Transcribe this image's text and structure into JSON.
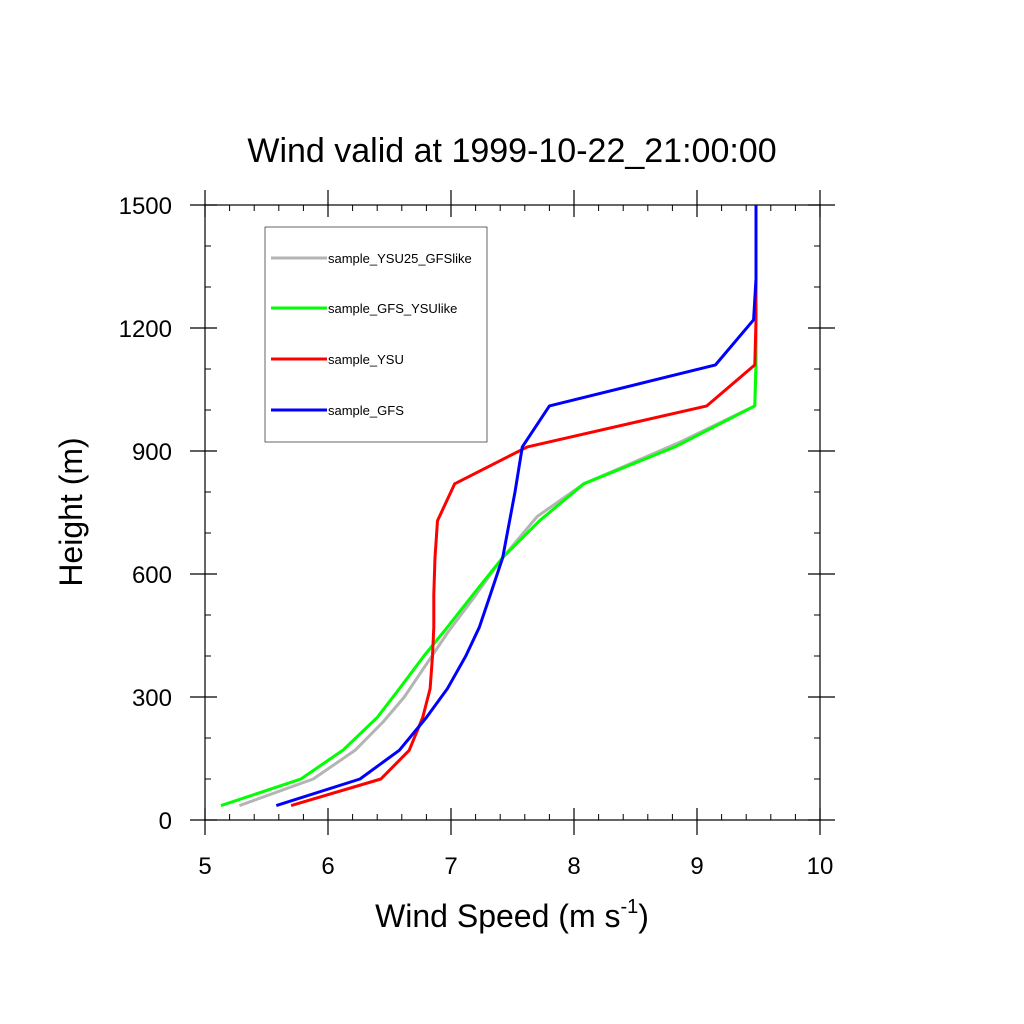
{
  "chart_data": {
    "type": "line",
    "title": "Wind valid at 1999-10-22_21:00:00",
    "xlabel": "Wind Speed (m s",
    "xlabel_sup": "-1",
    "xlabel_end": ")",
    "ylabel": "Height (m)",
    "xlim": [
      5,
      10
    ],
    "ylim": [
      0,
      1500
    ],
    "xticks": [
      5,
      6,
      7,
      8,
      9,
      10
    ],
    "yticks": [
      0,
      300,
      600,
      900,
      1200,
      1500
    ],
    "xtick_labels": [
      "5",
      "6",
      "7",
      "8",
      "9",
      "10"
    ],
    "ytick_labels": [
      "0",
      "300",
      "600",
      "900",
      "1200",
      "1500"
    ],
    "grid": false,
    "legend_placement": "top-left",
    "series": [
      {
        "name": "sample_YSU25_GFSlike",
        "color": "#b4b4b4",
        "x": [
          5.28,
          5.88,
          6.22,
          6.45,
          6.62,
          6.8,
          6.98,
          7.18,
          7.42,
          7.7,
          8.08,
          8.85,
          9.47,
          9.48,
          9.48,
          9.48
        ],
        "y": [
          35,
          100,
          170,
          240,
          300,
          380,
          460,
          540,
          640,
          740,
          820,
          920,
          1010,
          1110,
          1220,
          1500
        ]
      },
      {
        "name": "sample_GFS_YSUlike",
        "color": "#00ff00",
        "x": [
          5.13,
          5.78,
          6.12,
          6.4,
          6.58,
          6.78,
          6.97,
          7.18,
          7.42,
          7.72,
          8.08,
          8.82,
          9.47,
          9.48,
          9.48,
          9.48
        ],
        "y": [
          35,
          100,
          170,
          250,
          320,
          400,
          470,
          550,
          640,
          730,
          820,
          910,
          1010,
          1110,
          1220,
          1500
        ]
      },
      {
        "name": "sample_YSU",
        "color": "#ff0000",
        "x": [
          5.7,
          6.43,
          6.66,
          6.77,
          6.83,
          6.85,
          6.86,
          6.86,
          6.87,
          6.89,
          7.03,
          7.62,
          9.08,
          9.47,
          9.48,
          9.48
        ],
        "y": [
          35,
          100,
          170,
          250,
          320,
          400,
          470,
          550,
          640,
          730,
          820,
          910,
          1010,
          1110,
          1220,
          1500
        ]
      },
      {
        "name": "sample_GFS",
        "color": "#0000ff",
        "x": [
          5.58,
          6.26,
          6.58,
          6.8,
          6.97,
          7.12,
          7.23,
          7.32,
          7.42,
          7.52,
          7.58,
          7.8,
          9.15,
          9.46,
          9.48,
          9.48
        ],
        "y": [
          35,
          100,
          170,
          250,
          320,
          400,
          470,
          550,
          640,
          800,
          910,
          1010,
          1110,
          1220,
          1320,
          1500
        ]
      }
    ]
  }
}
